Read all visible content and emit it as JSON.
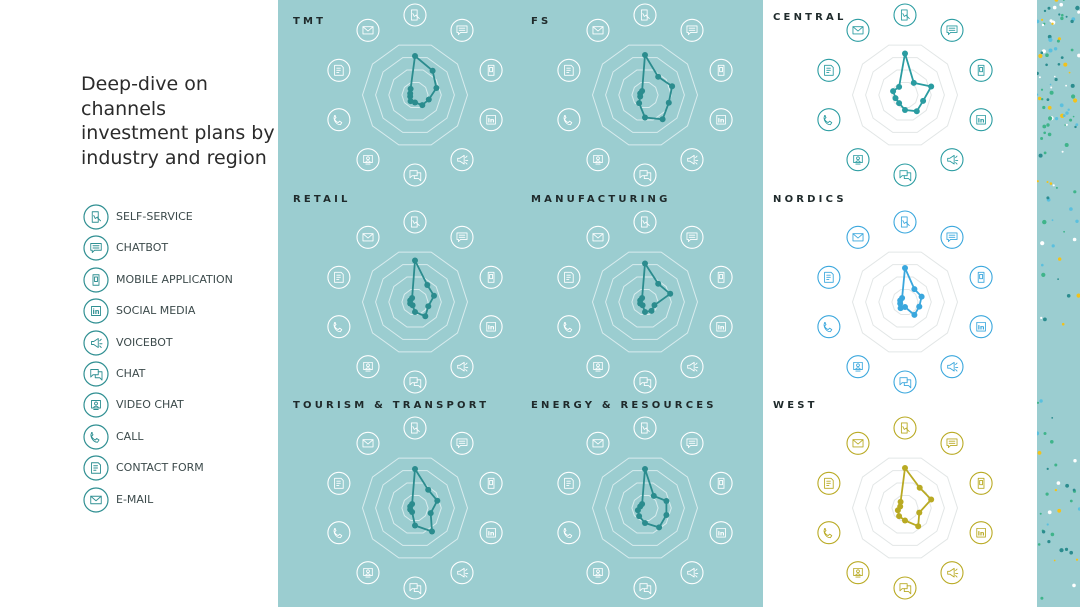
{
  "title": "Deep-dive on\nchannels\ninvestment plans by\nindustry and region",
  "legend": [
    {
      "label": "SELF-SERVICE",
      "icon": "self-service-icon"
    },
    {
      "label": "CHATBOT",
      "icon": "chatbot-icon"
    },
    {
      "label": "MOBILE APPLICATION",
      "icon": "mobile-application-icon"
    },
    {
      "label": "SOCIAL MEDIA",
      "icon": "social-media-icon"
    },
    {
      "label": "VOICEBOT",
      "icon": "voicebot-icon"
    },
    {
      "label": "CHAT",
      "icon": "chat-icon"
    },
    {
      "label": "VIDEO CHAT",
      "icon": "video-chat-icon"
    },
    {
      "label": "CALL",
      "icon": "call-icon"
    },
    {
      "label": "CONTACT FORM",
      "icon": "contact-form-icon"
    },
    {
      "label": "E-MAIL",
      "icon": "email-icon"
    }
  ],
  "colors": {
    "teal_background": "#9bcdd0",
    "industry_line": "#2b8c8e",
    "industry_icon": "#ffffff",
    "central": "#2a9ca1",
    "nordics": "#3aa7dd",
    "west": "#b9aa23",
    "ring_on_teal": "#d8ecee",
    "ring_on_white": "#e2e6e6",
    "legend_icon": "#2f8f92"
  },
  "chart_data": [
    {
      "type": "radar",
      "title": "TMT",
      "axes": [
        "Self-service",
        "Chatbot",
        "Mobile application",
        "Social media",
        "Voicebot",
        "Chat",
        "Video chat",
        "Call",
        "Contact form",
        "E-mail"
      ],
      "values": [
        0.78,
        0.6,
        0.45,
        0.29,
        0.25,
        0.15,
        0.15,
        0.1,
        0.1,
        0.15
      ],
      "rmax": 1,
      "color": "#2b8c8e"
    },
    {
      "type": "radar",
      "title": "FS",
      "axes": [
        "Self-service",
        "Chatbot",
        "Mobile application",
        "Social media",
        "Voicebot",
        "Chat",
        "Video chat",
        "Call",
        "Contact form",
        "E-mail"
      ],
      "values": [
        0.8,
        0.45,
        0.57,
        0.5,
        0.6,
        0.45,
        0.2,
        0.1,
        0.1,
        0.1
      ],
      "rmax": 1,
      "color": "#2b8c8e"
    },
    {
      "type": "radar",
      "title": "CENTRAL",
      "axes": [
        "Self-service",
        "Chatbot",
        "Mobile application",
        "Social media",
        "Voicebot",
        "Chat",
        "Video chat",
        "Call",
        "Contact form",
        "E-mail"
      ],
      "values": [
        0.83,
        0.3,
        0.55,
        0.38,
        0.4,
        0.3,
        0.2,
        0.2,
        0.25,
        0.2
      ],
      "rmax": 1,
      "color": "#2a9ca1"
    },
    {
      "type": "radar",
      "title": "RETAIL",
      "axes": [
        "Self-service",
        "Chatbot",
        "Mobile application",
        "Social media",
        "Voicebot",
        "Chat",
        "Video chat",
        "Call",
        "Contact form",
        "E-mail"
      ],
      "values": [
        0.83,
        0.42,
        0.4,
        0.28,
        0.35,
        0.2,
        0.08,
        0.1,
        0.1,
        0.1
      ],
      "rmax": 1,
      "color": "#2b8c8e"
    },
    {
      "type": "radar",
      "title": "MANUFACTURING",
      "axes": [
        "Self-service",
        "Chatbot",
        "Mobile application",
        "Social media",
        "Voicebot",
        "Chat",
        "Video chat",
        "Call",
        "Contact form",
        "E-mail"
      ],
      "values": [
        0.77,
        0.45,
        0.53,
        0.2,
        0.22,
        0.2,
        0.08,
        0.1,
        0.1,
        0.1
      ],
      "rmax": 1,
      "color": "#2b8c8e"
    },
    {
      "type": "radar",
      "title": "NORDICS",
      "axes": [
        "Self-service",
        "Chatbot",
        "Mobile application",
        "Social media",
        "Voicebot",
        "Chat",
        "Video chat",
        "Call",
        "Contact form",
        "E-mail"
      ],
      "values": [
        0.68,
        0.32,
        0.35,
        0.3,
        0.32,
        0.1,
        0.15,
        0.1,
        0.1,
        0.1
      ],
      "rmax": 1,
      "color": "#3aa7dd"
    },
    {
      "type": "radar",
      "title": "TOURISM & TRANSPORT",
      "axes": [
        "Self-service",
        "Chatbot",
        "Mobile application",
        "Social media",
        "Voicebot",
        "Chat",
        "Video chat",
        "Call",
        "Contact form",
        "E-mail"
      ],
      "values": [
        0.78,
        0.45,
        0.47,
        0.33,
        0.58,
        0.35,
        0.1,
        0.1,
        0.1,
        0.1
      ],
      "rmax": 1,
      "color": "#2b8c8e"
    },
    {
      "type": "radar",
      "title": "ENERGY & RESOURCES",
      "axes": [
        "Self-service",
        "Chatbot",
        "Mobile application",
        "Social media",
        "Voicebot",
        "Chat",
        "Video chat",
        "Call",
        "Contact form",
        "E-mail"
      ],
      "values": [
        0.78,
        0.3,
        0.45,
        0.45,
        0.48,
        0.3,
        0.2,
        0.15,
        0.1,
        0.1
      ],
      "rmax": 1,
      "color": "#2b8c8e"
    },
    {
      "type": "radar",
      "title": "WEST",
      "axes": [
        "Self-service",
        "Chatbot",
        "Mobile application",
        "Social media",
        "Voicebot",
        "Chat",
        "Video chat",
        "Call",
        "Contact form",
        "E-mail"
      ],
      "values": [
        0.8,
        0.5,
        0.55,
        0.3,
        0.45,
        0.25,
        0.2,
        0.15,
        0.1,
        0.15
      ],
      "rmax": 1,
      "color": "#b9aa23"
    }
  ]
}
